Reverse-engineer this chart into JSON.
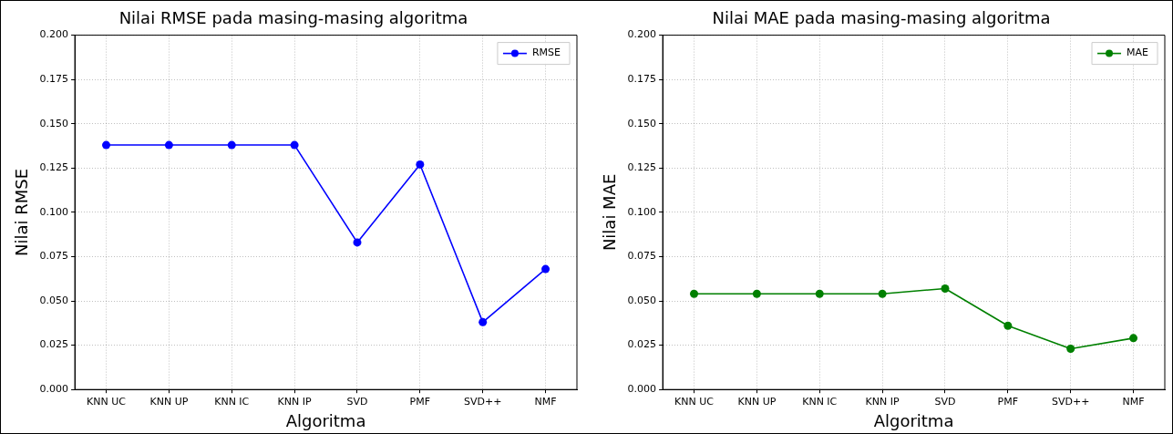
{
  "chart_data": [
    {
      "type": "line",
      "title": "Nilai RMSE pada masing-masing algoritma",
      "xlabel": "Algoritma",
      "ylabel": "Nilai RMSE",
      "categories": [
        "KNN UC",
        "KNN UP",
        "KNN IC",
        "KNN IP",
        "SVD",
        "PMF",
        "SVD++",
        "NMF"
      ],
      "series": [
        {
          "name": "RMSE",
          "color": "#0000ff",
          "values": [
            0.138,
            0.138,
            0.138,
            0.138,
            0.083,
            0.127,
            0.038,
            0.068
          ]
        }
      ],
      "ylim": [
        0,
        0.2
      ],
      "yticks": [
        {
          "value": 0,
          "label": "0.000"
        },
        {
          "value": 0.025,
          "label": "0.025"
        },
        {
          "value": 0.05,
          "label": "0.050"
        },
        {
          "value": 0.075,
          "label": "0.075"
        },
        {
          "value": 0.1,
          "label": "0.100"
        },
        {
          "value": 0.125,
          "label": "0.125"
        },
        {
          "value": 0.15,
          "label": "0.150"
        },
        {
          "value": 0.175,
          "label": "0.175"
        },
        {
          "value": 0.2,
          "label": "0.200"
        }
      ],
      "grid": true,
      "legend": "top right",
      "marker": "circle",
      "line_style": "solid"
    },
    {
      "type": "line",
      "title": "Nilai MAE pada masing-masing algoritma",
      "xlabel": "Algoritma",
      "ylabel": "Nilai MAE",
      "categories": [
        "KNN UC",
        "KNN UP",
        "KNN IC",
        "KNN IP",
        "SVD",
        "PMF",
        "SVD++",
        "NMF"
      ],
      "series": [
        {
          "name": "MAE",
          "color": "#008000",
          "values": [
            0.054,
            0.054,
            0.054,
            0.054,
            0.057,
            0.036,
            0.023,
            0.029
          ]
        }
      ],
      "ylim": [
        0,
        0.2
      ],
      "yticks": [
        {
          "value": 0,
          "label": "0.000"
        },
        {
          "value": 0.025,
          "label": "0.025"
        },
        {
          "value": 0.05,
          "label": "0.050"
        },
        {
          "value": 0.075,
          "label": "0.075"
        },
        {
          "value": 0.1,
          "label": "0.100"
        },
        {
          "value": 0.125,
          "label": "0.125"
        },
        {
          "value": 0.15,
          "label": "0.150"
        },
        {
          "value": 0.175,
          "label": "0.175"
        },
        {
          "value": 0.2,
          "label": "0.200"
        }
      ],
      "grid": true,
      "legend": "top right",
      "marker": "circle",
      "line_style": "solid"
    }
  ]
}
